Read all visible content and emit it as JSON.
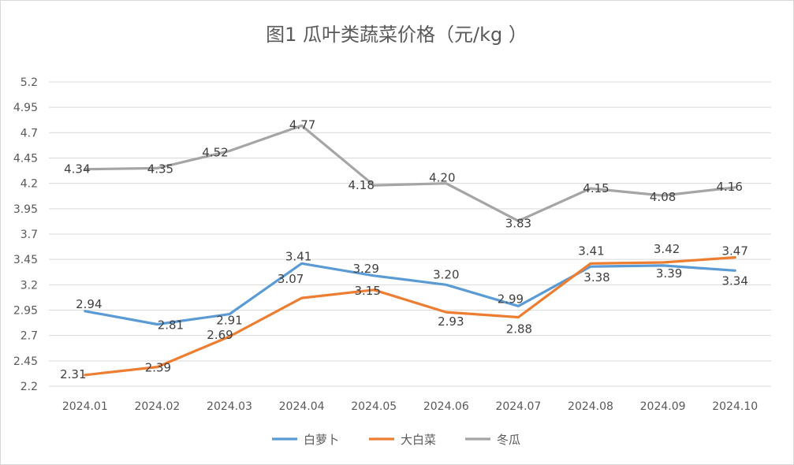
{
  "chart_data": {
    "type": "line",
    "title": "图1  瓜叶类蔬菜价格（元/kg ）",
    "xlabel": "",
    "ylabel": "",
    "categories": [
      "2024.01",
      "2024.02",
      "2024.03",
      "2024.04",
      "2024.05",
      "2024.06",
      "2024.07",
      "2024.08",
      "2024.09",
      "2024.10"
    ],
    "y_ticks": [
      "2.2",
      "2.45",
      "2.7",
      "2.95",
      "3.2",
      "3.45",
      "3.7",
      "3.95",
      "4.2",
      "4.45",
      "4.7",
      "4.95",
      "5.2"
    ],
    "ylim": [
      2.2,
      5.2
    ],
    "grid": true,
    "legend_position": "bottom",
    "series": [
      {
        "name": "白萝卜",
        "color": "#5b9bd5",
        "values": [
          2.94,
          2.81,
          2.91,
          3.41,
          3.29,
          3.2,
          2.99,
          3.38,
          3.39,
          3.34
        ],
        "labels": [
          "2.94",
          "2.81",
          "2.91",
          "3.41",
          "3.29",
          "3.20",
          "2.99",
          "3.38",
          "3.39",
          "3.34"
        ]
      },
      {
        "name": "大白菜",
        "color": "#ed7d31",
        "values": [
          2.31,
          2.39,
          2.69,
          3.07,
          3.15,
          2.93,
          2.88,
          3.41,
          3.42,
          3.47
        ],
        "labels": [
          "2.31",
          "2.39",
          "2.69",
          "3.07",
          "3.15",
          "2.93",
          "2.88",
          "3.41",
          "3.42",
          "3.47"
        ]
      },
      {
        "name": "冬瓜",
        "color": "#a5a5a5",
        "values": [
          4.34,
          4.35,
          4.52,
          4.77,
          4.18,
          4.2,
          3.83,
          4.15,
          4.08,
          4.16
        ],
        "labels": [
          "4.34",
          "4.35",
          "4.52",
          "4.77",
          "4.18",
          "4.20",
          "3.83",
          "4.15",
          "4.08",
          "4.16"
        ]
      }
    ]
  }
}
